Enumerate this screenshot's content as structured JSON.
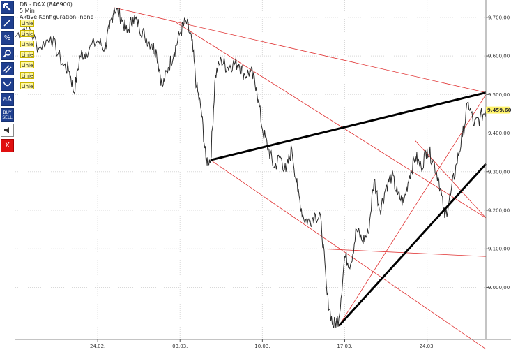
{
  "header": {
    "instrument": "DB - DAX (846900)",
    "interval": "5 Min",
    "config": "Aktive Konfiguration: none"
  },
  "toolbar": [
    {
      "name": "cursor-icon",
      "label": ""
    },
    {
      "name": "line-tool-icon",
      "label": ""
    },
    {
      "name": "percent-tool-icon",
      "label": "%"
    },
    {
      "name": "zoom-icon",
      "label": ""
    },
    {
      "name": "parallel-lines-icon",
      "label": ""
    },
    {
      "name": "curve-tool-icon",
      "label": ""
    },
    {
      "name": "text-size-icon",
      "label": "aA"
    },
    {
      "name": "buy-sell-icon",
      "label_top": "BUY",
      "label_bottom": "SELL"
    },
    {
      "name": "sound-icon",
      "label": ""
    },
    {
      "name": "close-icon",
      "label": "X"
    }
  ],
  "line_labels": [
    "Linie",
    "Linie",
    "Linie",
    "Linie",
    "Linie",
    "Linie",
    "Linie"
  ],
  "colors": {
    "price": "#2a2a2a",
    "thin_lines": "#e03030",
    "thick_lines": "#000000",
    "grid": "#d8d8d8",
    "last_price_bg": "#fff36a",
    "toolbar": "#1f3f8f"
  },
  "chart_data": {
    "type": "line",
    "title": "DB - DAX (846900)",
    "interval": "5 Min",
    "y_ticks": [
      9000,
      9100,
      9200,
      9300,
      9400,
      9500,
      9600,
      9700
    ],
    "y_tick_labels": [
      "9.000,00",
      "9.100,00",
      "9.200,00",
      "9.300,00",
      "9.400,00",
      "9.500,00",
      "9.600,00",
      "9.700,00"
    ],
    "ylim": [
      8865,
      9745
    ],
    "x_range": [
      0,
      40
    ],
    "x_ticks": [
      {
        "x": 7,
        "label": "24.02."
      },
      {
        "x": 14,
        "label": "03.03."
      },
      {
        "x": 21,
        "label": "10.03."
      },
      {
        "x": 28,
        "label": "17.03."
      },
      {
        "x": 35,
        "label": "24.03."
      }
    ],
    "last_price": 9459.6,
    "last_price_label": "9.459,60",
    "series": [
      {
        "points": [
          [
            0.0,
            9650
          ],
          [
            1.0,
            9680
          ],
          [
            2.0,
            9620
          ],
          [
            3.0,
            9650
          ],
          [
            4.0,
            9580
          ],
          [
            4.6,
            9560
          ],
          [
            5.0,
            9505
          ],
          [
            5.5,
            9600
          ],
          [
            6.0,
            9610
          ],
          [
            7.0,
            9640
          ],
          [
            7.6,
            9620
          ],
          [
            8.0,
            9670
          ],
          [
            8.4,
            9725
          ],
          [
            9.0,
            9700
          ],
          [
            9.5,
            9660
          ],
          [
            10.0,
            9700
          ],
          [
            10.5,
            9680
          ],
          [
            11.0,
            9650
          ],
          [
            11.6,
            9630
          ],
          [
            12.0,
            9610
          ],
          [
            12.5,
            9520
          ],
          [
            13.0,
            9570
          ],
          [
            13.5,
            9610
          ],
          [
            14.0,
            9660
          ],
          [
            14.5,
            9690
          ],
          [
            15.0,
            9640
          ],
          [
            15.4,
            9520
          ],
          [
            15.8,
            9460
          ],
          [
            16.2,
            9330
          ],
          [
            16.6,
            9330
          ],
          [
            17.0,
            9550
          ],
          [
            17.5,
            9590
          ],
          [
            18.0,
            9570
          ],
          [
            18.5,
            9580
          ],
          [
            19.0,
            9580
          ],
          [
            19.5,
            9550
          ],
          [
            20.0,
            9560
          ],
          [
            20.5,
            9520
          ],
          [
            21.0,
            9410
          ],
          [
            21.5,
            9360
          ],
          [
            22.0,
            9310
          ],
          [
            22.5,
            9340
          ],
          [
            23.0,
            9300
          ],
          [
            23.5,
            9360
          ],
          [
            24.0,
            9250
          ],
          [
            24.5,
            9180
          ],
          [
            25.0,
            9170
          ],
          [
            25.5,
            9190
          ],
          [
            26.0,
            9170
          ],
          [
            26.5,
            8980
          ],
          [
            27.0,
            8900
          ],
          [
            27.5,
            8920
          ],
          [
            28.0,
            9080
          ],
          [
            28.5,
            9060
          ],
          [
            29.0,
            9150
          ],
          [
            29.5,
            9120
          ],
          [
            30.0,
            9140
          ],
          [
            30.5,
            9280
          ],
          [
            31.0,
            9200
          ],
          [
            31.5,
            9260
          ],
          [
            32.0,
            9290
          ],
          [
            32.5,
            9240
          ],
          [
            33.0,
            9220
          ],
          [
            33.5,
            9290
          ],
          [
            34.0,
            9340
          ],
          [
            34.5,
            9310
          ],
          [
            35.0,
            9360
          ],
          [
            35.5,
            9330
          ],
          [
            36.0,
            9280
          ],
          [
            36.5,
            9180
          ],
          [
            37.0,
            9240
          ],
          [
            37.5,
            9320
          ],
          [
            38.0,
            9390
          ],
          [
            38.5,
            9480
          ],
          [
            39.0,
            9420
          ],
          [
            39.5,
            9440
          ],
          [
            40.0,
            9459.6
          ]
        ]
      }
    ],
    "trendlines": [
      {
        "style": "thin",
        "from": [
          8.4,
          9725
        ],
        "to": [
          40,
          9505
        ]
      },
      {
        "style": "thin",
        "from": [
          13.5,
          9690
        ],
        "to": [
          40,
          9180
        ]
      },
      {
        "style": "thin",
        "from": [
          16.6,
          9330
        ],
        "to": [
          40,
          8840
        ]
      },
      {
        "style": "thin",
        "from": [
          26.0,
          9100
        ],
        "to": [
          40,
          9080
        ]
      },
      {
        "style": "thin",
        "from": [
          27.5,
          8900
        ],
        "to": [
          40,
          9500
        ]
      },
      {
        "style": "thin",
        "from": [
          34.0,
          9380
        ],
        "to": [
          40,
          9180
        ]
      },
      {
        "style": "thick",
        "from": [
          16.6,
          9330
        ],
        "to": [
          40,
          9505
        ]
      },
      {
        "style": "thick",
        "from": [
          27.5,
          8900
        ],
        "to": [
          40,
          9320
        ]
      }
    ]
  }
}
